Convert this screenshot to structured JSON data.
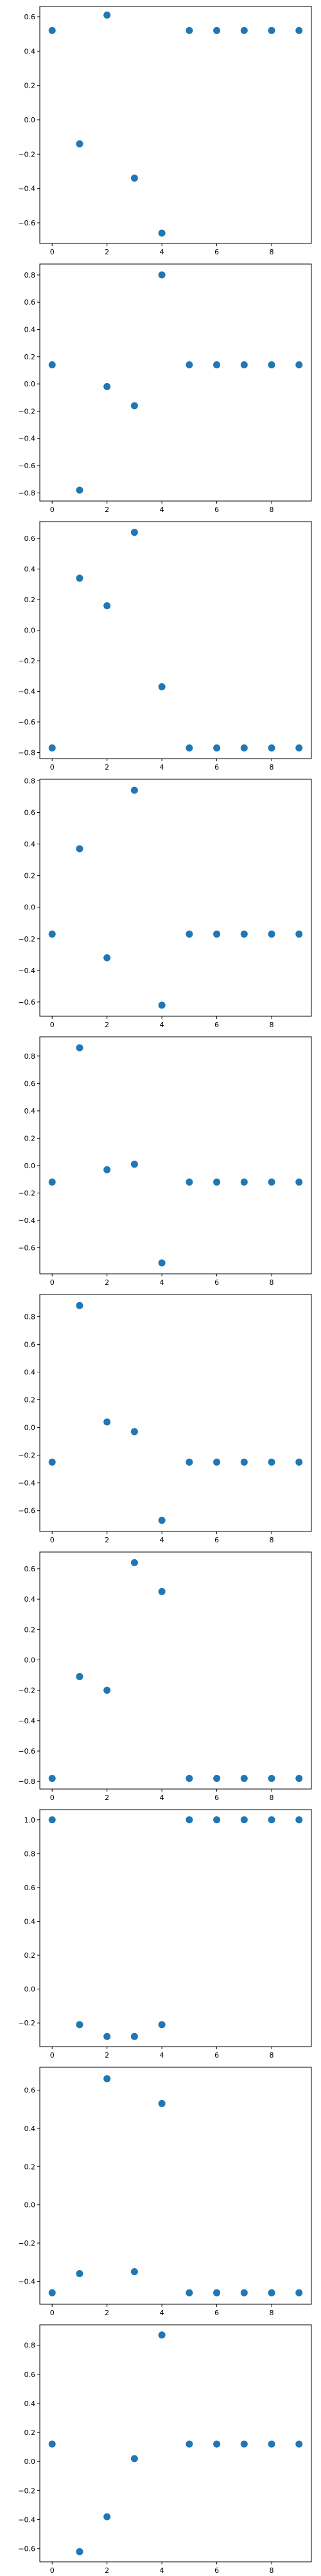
{
  "chart_data": [
    {
      "type": "scatter",
      "x": [
        0,
        1,
        2,
        3,
        4,
        5,
        6,
        7,
        8,
        9
      ],
      "y": [
        0.52,
        -0.14,
        0.61,
        -0.34,
        -0.66,
        0.52,
        0.52,
        0.52,
        0.52,
        0.52
      ],
      "xlim": [
        -0.45,
        9.45
      ],
      "ylim": [
        -0.72,
        0.66
      ],
      "xticks": [
        0,
        2,
        4,
        6,
        8
      ],
      "xticklabels": [
        "0",
        "2",
        "4",
        "6",
        "8"
      ],
      "yticks": [
        -0.6,
        -0.4,
        -0.2,
        0.0,
        0.2,
        0.4,
        0.6
      ],
      "yticklabels": [
        "−0.6",
        "−0.4",
        "−0.2",
        "0.0",
        "0.2",
        "0.4",
        "0.6"
      ],
      "marker_color": "#1f77b4",
      "grid": false
    },
    {
      "type": "scatter",
      "x": [
        0,
        1,
        2,
        3,
        4,
        5,
        6,
        7,
        8,
        9
      ],
      "y": [
        0.14,
        -0.78,
        -0.02,
        -0.16,
        0.8,
        0.14,
        0.14,
        0.14,
        0.14,
        0.14
      ],
      "xlim": [
        -0.45,
        9.45
      ],
      "ylim": [
        -0.86,
        0.88
      ],
      "xticks": [
        0,
        2,
        4,
        6,
        8
      ],
      "xticklabels": [
        "0",
        "2",
        "4",
        "6",
        "8"
      ],
      "yticks": [
        -0.8,
        -0.6,
        -0.4,
        -0.2,
        0.0,
        0.2,
        0.4,
        0.6,
        0.8
      ],
      "yticklabels": [
        "−0.8",
        "−0.6",
        "−0.4",
        "−0.2",
        "0.0",
        "0.2",
        "0.4",
        "0.6",
        "0.8"
      ],
      "marker_color": "#1f77b4",
      "grid": false
    },
    {
      "type": "scatter",
      "x": [
        0,
        1,
        2,
        3,
        4,
        5,
        6,
        7,
        8,
        9
      ],
      "y": [
        -0.77,
        0.34,
        0.16,
        0.64,
        -0.37,
        -0.77,
        -0.77,
        -0.77,
        -0.77,
        -0.77
      ],
      "xlim": [
        -0.45,
        9.45
      ],
      "ylim": [
        -0.84,
        0.71
      ],
      "xticks": [
        0,
        2,
        4,
        6,
        8
      ],
      "xticklabels": [
        "0",
        "2",
        "4",
        "6",
        "8"
      ],
      "yticks": [
        -0.8,
        -0.6,
        -0.4,
        -0.2,
        0.0,
        0.2,
        0.4,
        0.6
      ],
      "yticklabels": [
        "−0.8",
        "−0.6",
        "−0.4",
        "−0.2",
        "0.0",
        "0.2",
        "0.4",
        "0.6"
      ],
      "marker_color": "#1f77b4",
      "grid": false
    },
    {
      "type": "scatter",
      "x": [
        0,
        1,
        2,
        3,
        4,
        5,
        6,
        7,
        8,
        9
      ],
      "y": [
        -0.17,
        0.37,
        -0.32,
        0.74,
        -0.62,
        -0.17,
        -0.17,
        -0.17,
        -0.17,
        -0.17
      ],
      "xlim": [
        -0.45,
        9.45
      ],
      "ylim": [
        -0.69,
        0.81
      ],
      "xticks": [
        0,
        2,
        4,
        6,
        8
      ],
      "xticklabels": [
        "0",
        "2",
        "4",
        "6",
        "8"
      ],
      "yticks": [
        -0.6,
        -0.4,
        -0.2,
        0.0,
        0.2,
        0.4,
        0.6,
        0.8
      ],
      "yticklabels": [
        "−0.6",
        "−0.4",
        "−0.2",
        "0.0",
        "0.2",
        "0.4",
        "0.6",
        "0.8"
      ],
      "marker_color": "#1f77b4",
      "grid": false
    },
    {
      "type": "scatter",
      "x": [
        0,
        1,
        2,
        3,
        4,
        5,
        6,
        7,
        8,
        9
      ],
      "y": [
        -0.12,
        0.86,
        -0.03,
        0.01,
        -0.71,
        -0.12,
        -0.12,
        -0.12,
        -0.12,
        -0.12
      ],
      "xlim": [
        -0.45,
        9.45
      ],
      "ylim": [
        -0.79,
        0.94
      ],
      "xticks": [
        0,
        2,
        4,
        6,
        8
      ],
      "xticklabels": [
        "0",
        "2",
        "4",
        "6",
        "8"
      ],
      "yticks": [
        -0.6,
        -0.4,
        -0.2,
        0.0,
        0.2,
        0.4,
        0.6,
        0.8
      ],
      "yticklabels": [
        "−0.6",
        "−0.4",
        "−0.2",
        "0.0",
        "0.2",
        "0.4",
        "0.6",
        "0.8"
      ],
      "marker_color": "#1f77b4",
      "grid": false
    },
    {
      "type": "scatter",
      "x": [
        0,
        1,
        2,
        3,
        4,
        5,
        6,
        7,
        8,
        9
      ],
      "y": [
        -0.25,
        0.88,
        0.04,
        -0.03,
        -0.67,
        -0.25,
        -0.25,
        -0.25,
        -0.25,
        -0.25
      ],
      "xlim": [
        -0.45,
        9.45
      ],
      "ylim": [
        -0.75,
        0.96
      ],
      "xticks": [
        0,
        2,
        4,
        6,
        8
      ],
      "xticklabels": [
        "0",
        "2",
        "4",
        "6",
        "8"
      ],
      "yticks": [
        -0.6,
        -0.4,
        -0.2,
        0.0,
        0.2,
        0.4,
        0.6,
        0.8
      ],
      "yticklabels": [
        "−0.6",
        "−0.4",
        "−0.2",
        "0.0",
        "0.2",
        "0.4",
        "0.6",
        "0.8"
      ],
      "marker_color": "#1f77b4",
      "grid": false
    },
    {
      "type": "scatter",
      "x": [
        0,
        1,
        2,
        3,
        4,
        5,
        6,
        7,
        8,
        9
      ],
      "y": [
        -0.78,
        -0.11,
        -0.2,
        0.64,
        0.45,
        -0.78,
        -0.78,
        -0.78,
        -0.78,
        -0.78
      ],
      "xlim": [
        -0.45,
        9.45
      ],
      "ylim": [
        -0.85,
        0.71
      ],
      "xticks": [
        0,
        2,
        4,
        6,
        8
      ],
      "xticklabels": [
        "0",
        "2",
        "4",
        "6",
        "8"
      ],
      "yticks": [
        -0.8,
        -0.6,
        -0.4,
        -0.2,
        0.0,
        0.2,
        0.4,
        0.6
      ],
      "yticklabels": [
        "−0.8",
        "−0.6",
        "−0.4",
        "−0.2",
        "0.0",
        "0.2",
        "0.4",
        "0.6"
      ],
      "marker_color": "#1f77b4",
      "grid": false
    },
    {
      "type": "scatter",
      "x": [
        0,
        1,
        2,
        3,
        4,
        5,
        6,
        7,
        8,
        9
      ],
      "y": [
        1.0,
        -0.21,
        -0.28,
        -0.28,
        -0.21,
        1.0,
        1.0,
        1.0,
        1.0,
        1.0
      ],
      "xlim": [
        -0.45,
        9.45
      ],
      "ylim": [
        -0.34,
        1.06
      ],
      "xticks": [
        0,
        2,
        4,
        6,
        8
      ],
      "xticklabels": [
        "0",
        "2",
        "4",
        "6",
        "8"
      ],
      "yticks": [
        -0.2,
        0.0,
        0.2,
        0.4,
        0.6,
        0.8,
        1.0
      ],
      "yticklabels": [
        "−0.2",
        "0.0",
        "0.2",
        "0.4",
        "0.6",
        "0.8",
        "1.0"
      ],
      "marker_color": "#1f77b4",
      "grid": false
    },
    {
      "type": "scatter",
      "x": [
        0,
        1,
        2,
        3,
        4,
        5,
        6,
        7,
        8,
        9
      ],
      "y": [
        -0.46,
        -0.36,
        0.66,
        -0.35,
        0.53,
        -0.46,
        -0.46,
        -0.46,
        -0.46,
        -0.46
      ],
      "xlim": [
        -0.45,
        9.45
      ],
      "ylim": [
        -0.52,
        0.72
      ],
      "xticks": [
        0,
        2,
        4,
        6,
        8
      ],
      "xticklabels": [
        "0",
        "2",
        "4",
        "6",
        "8"
      ],
      "yticks": [
        -0.4,
        -0.2,
        0.0,
        0.2,
        0.4,
        0.6
      ],
      "yticklabels": [
        "−0.4",
        "−0.2",
        "0.0",
        "0.2",
        "0.4",
        "0.6"
      ],
      "marker_color": "#1f77b4",
      "grid": false
    },
    {
      "type": "scatter",
      "x": [
        0,
        1,
        2,
        3,
        4,
        5,
        6,
        7,
        8,
        9
      ],
      "y": [
        0.12,
        -0.62,
        -0.38,
        0.02,
        0.87,
        0.12,
        0.12,
        0.12,
        0.12,
        0.12
      ],
      "xlim": [
        -0.45,
        9.45
      ],
      "ylim": [
        -0.69,
        0.94
      ],
      "xticks": [
        0,
        2,
        4,
        6,
        8
      ],
      "xticklabels": [
        "0",
        "2",
        "4",
        "6",
        "8"
      ],
      "yticks": [
        -0.6,
        -0.4,
        -0.2,
        0.0,
        0.2,
        0.4,
        0.6,
        0.8
      ],
      "yticklabels": [
        "−0.6",
        "−0.4",
        "−0.2",
        "0.0",
        "0.2",
        "0.4",
        "0.6",
        "0.8"
      ],
      "marker_color": "#1f77b4",
      "grid": false
    }
  ]
}
